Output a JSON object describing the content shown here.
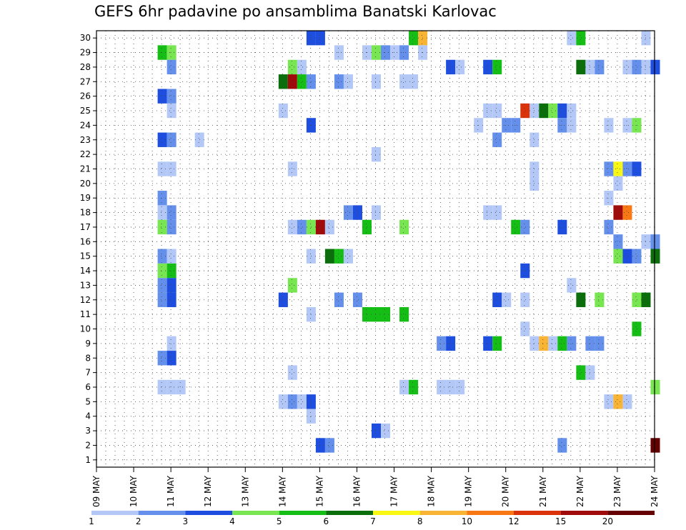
{
  "chart_data": {
    "type": "heatmap",
    "title": "GEFS 6hr padavine po ansamblima Banatski Karlovac",
    "x_tick_labels": [
      "09 MAY",
      "10 MAY",
      "11 MAY",
      "12 MAY",
      "13 MAY",
      "14 MAY",
      "15 MAY",
      "16 MAY",
      "17 MAY",
      "18 MAY",
      "19 MAY",
      "20 MAY",
      "21 MAY",
      "22 MAY",
      "23 MAY",
      "24 MAY"
    ],
    "y_tick_labels": [
      "1",
      "2",
      "3",
      "4",
      "5",
      "6",
      "7",
      "8",
      "9",
      "10",
      "11",
      "12",
      "13",
      "14",
      "15",
      "16",
      "17",
      "18",
      "19",
      "20",
      "21",
      "22",
      "23",
      "24",
      "25",
      "26",
      "27",
      "28",
      "29",
      "30"
    ],
    "x_range": [
      "09 MAY 00",
      "24 MAY 00"
    ],
    "y_range": [
      1,
      30
    ],
    "grid": true,
    "colorbar": {
      "labels": [
        "1",
        "2",
        "3",
        "4",
        "5",
        "6",
        "7",
        "8",
        "10",
        "12",
        "15",
        "20"
      ],
      "colors": [
        "#b4c8f8",
        "#6490ec",
        "#1e4ee0",
        "#78e650",
        "#14be14",
        "#0a6e0a",
        "#f8f814",
        "#f8b432",
        "#f87814",
        "#dc320a",
        "#a00a0a",
        "#640000"
      ]
    },
    "cells": [
      {
        "member": 30,
        "cells": [
          [
            23,
            "c3"
          ],
          [
            24,
            "c3"
          ],
          [
            34,
            "c5"
          ],
          [
            35,
            "c8"
          ],
          [
            51,
            "c1"
          ],
          [
            52,
            "c5"
          ],
          [
            59,
            "c1"
          ]
        ]
      },
      {
        "member": 29,
        "cells": [
          [
            7,
            "c5"
          ],
          [
            8,
            "c4"
          ],
          [
            26,
            "c1"
          ],
          [
            29,
            "c1"
          ],
          [
            30,
            "c4"
          ],
          [
            31,
            "c2"
          ],
          [
            32,
            "c1"
          ],
          [
            33,
            "c2"
          ],
          [
            35,
            "c1"
          ]
        ]
      },
      {
        "member": 28,
        "cells": [
          [
            8,
            "c2"
          ],
          [
            21,
            "c4"
          ],
          [
            22,
            "c1"
          ],
          [
            38,
            "c3"
          ],
          [
            39,
            "c1"
          ],
          [
            42,
            "c3"
          ],
          [
            43,
            "c5"
          ],
          [
            52,
            "c6"
          ],
          [
            53,
            "c1"
          ],
          [
            54,
            "c2"
          ],
          [
            57,
            "c1"
          ],
          [
            58,
            "c2"
          ],
          [
            59,
            "c1"
          ],
          [
            60,
            "c3"
          ]
        ]
      },
      {
        "member": 27,
        "cells": [
          [
            20,
            "c6"
          ],
          [
            21,
            "c11"
          ],
          [
            22,
            "c5"
          ],
          [
            23,
            "c2"
          ],
          [
            26,
            "c2"
          ],
          [
            27,
            "c1"
          ],
          [
            30,
            "c1"
          ],
          [
            33,
            "c1"
          ],
          [
            34,
            "c1"
          ]
        ]
      },
      {
        "member": 26,
        "cells": [
          [
            7,
            "c3"
          ],
          [
            8,
            "c2"
          ]
        ]
      },
      {
        "member": 25,
        "cells": [
          [
            8,
            "c1"
          ],
          [
            20,
            "c1"
          ],
          [
            42,
            "c1"
          ],
          [
            43,
            "c1"
          ],
          [
            46,
            "c10"
          ],
          [
            47,
            "c1"
          ],
          [
            48,
            "c6"
          ],
          [
            49,
            "c4"
          ],
          [
            50,
            "c3"
          ],
          [
            51,
            "c1"
          ]
        ]
      },
      {
        "member": 24,
        "cells": [
          [
            23,
            "c3"
          ],
          [
            41,
            "c1"
          ],
          [
            44,
            "c2"
          ],
          [
            45,
            "c2"
          ],
          [
            50,
            "c2"
          ],
          [
            51,
            "c1"
          ],
          [
            55,
            "c1"
          ],
          [
            57,
            "c1"
          ],
          [
            58,
            "c4"
          ]
        ]
      },
      {
        "member": 23,
        "cells": [
          [
            7,
            "c3"
          ],
          [
            8,
            "c2"
          ],
          [
            11,
            "c1"
          ],
          [
            43,
            "c2"
          ],
          [
            47,
            "c1"
          ]
        ]
      },
      {
        "member": 22,
        "cells": [
          [
            30,
            "c1"
          ]
        ]
      },
      {
        "member": 21,
        "cells": [
          [
            7,
            "c1"
          ],
          [
            8,
            "c1"
          ],
          [
            21,
            "c1"
          ],
          [
            47,
            "c1"
          ],
          [
            55,
            "c2"
          ],
          [
            56,
            "c7"
          ],
          [
            57,
            "c2"
          ],
          [
            58,
            "c3"
          ]
        ]
      },
      {
        "member": 20,
        "cells": [
          [
            47,
            "c1"
          ],
          [
            56,
            "c1"
          ]
        ]
      },
      {
        "member": 19,
        "cells": [
          [
            7,
            "c2"
          ],
          [
            55,
            "c1"
          ]
        ]
      },
      {
        "member": 18,
        "cells": [
          [
            7,
            "c1"
          ],
          [
            8,
            "c2"
          ],
          [
            27,
            "c2"
          ],
          [
            28,
            "c3"
          ],
          [
            30,
            "c1"
          ],
          [
            42,
            "c1"
          ],
          [
            43,
            "c1"
          ],
          [
            56,
            "c11"
          ],
          [
            57,
            "c9"
          ]
        ]
      },
      {
        "member": 17,
        "cells": [
          [
            7,
            "c4"
          ],
          [
            8,
            "c2"
          ],
          [
            21,
            "c1"
          ],
          [
            22,
            "c2"
          ],
          [
            23,
            "c4"
          ],
          [
            24,
            "c11"
          ],
          [
            25,
            "c1"
          ],
          [
            29,
            "c5"
          ],
          [
            33,
            "c4"
          ],
          [
            45,
            "c5"
          ],
          [
            46,
            "c2"
          ],
          [
            50,
            "c3"
          ],
          [
            55,
            "c2"
          ]
        ]
      },
      {
        "member": 16,
        "cells": [
          [
            56,
            "c2"
          ],
          [
            59,
            "c1"
          ],
          [
            60,
            "c2"
          ]
        ]
      },
      {
        "member": 15,
        "cells": [
          [
            7,
            "c2"
          ],
          [
            8,
            "c1"
          ],
          [
            23,
            "c1"
          ],
          [
            25,
            "c6"
          ],
          [
            26,
            "c5"
          ],
          [
            27,
            "c1"
          ],
          [
            56,
            "c4"
          ],
          [
            57,
            "c3"
          ],
          [
            58,
            "c2"
          ],
          [
            60,
            "c6"
          ]
        ]
      },
      {
        "member": 14,
        "cells": [
          [
            7,
            "c4"
          ],
          [
            8,
            "c5"
          ],
          [
            46,
            "c3"
          ]
        ]
      },
      {
        "member": 13,
        "cells": [
          [
            7,
            "c2"
          ],
          [
            8,
            "c3"
          ],
          [
            21,
            "c4"
          ],
          [
            51,
            "c1"
          ]
        ]
      },
      {
        "member": 12,
        "cells": [
          [
            7,
            "c2"
          ],
          [
            8,
            "c3"
          ],
          [
            20,
            "c3"
          ],
          [
            26,
            "c2"
          ],
          [
            28,
            "c2"
          ],
          [
            43,
            "c3"
          ],
          [
            44,
            "c1"
          ],
          [
            46,
            "c1"
          ],
          [
            52,
            "c6"
          ],
          [
            54,
            "c4"
          ],
          [
            58,
            "c4"
          ],
          [
            59,
            "c6"
          ]
        ]
      },
      {
        "member": 11,
        "cells": [
          [
            23,
            "c1"
          ],
          [
            29,
            "c5"
          ],
          [
            30,
            "c5"
          ],
          [
            31,
            "c5"
          ],
          [
            33,
            "c5"
          ]
        ]
      },
      {
        "member": 10,
        "cells": [
          [
            46,
            "c1"
          ],
          [
            58,
            "c5"
          ]
        ]
      },
      {
        "member": 9,
        "cells": [
          [
            8,
            "c1"
          ],
          [
            37,
            "c2"
          ],
          [
            38,
            "c3"
          ],
          [
            42,
            "c3"
          ],
          [
            43,
            "c5"
          ],
          [
            47,
            "c1"
          ],
          [
            48,
            "c8"
          ],
          [
            49,
            "c1"
          ],
          [
            50,
            "c5"
          ],
          [
            51,
            "c2"
          ],
          [
            53,
            "c2"
          ],
          [
            54,
            "c2"
          ]
        ]
      },
      {
        "member": 8,
        "cells": [
          [
            7,
            "c2"
          ],
          [
            8,
            "c3"
          ]
        ]
      },
      {
        "member": 7,
        "cells": [
          [
            21,
            "c1"
          ],
          [
            52,
            "c5"
          ],
          [
            53,
            "c1"
          ]
        ]
      },
      {
        "member": 6,
        "cells": [
          [
            7,
            "c1"
          ],
          [
            8,
            "c1"
          ],
          [
            9,
            "c1"
          ],
          [
            33,
            "c1"
          ],
          [
            34,
            "c5"
          ],
          [
            37,
            "c1"
          ],
          [
            38,
            "c1"
          ],
          [
            39,
            "c1"
          ],
          [
            60,
            "c4"
          ]
        ]
      },
      {
        "member": 5,
        "cells": [
          [
            20,
            "c1"
          ],
          [
            21,
            "c2"
          ],
          [
            22,
            "c1"
          ],
          [
            23,
            "c3"
          ],
          [
            55,
            "c1"
          ],
          [
            56,
            "c8"
          ],
          [
            57,
            "c1"
          ]
        ]
      },
      {
        "member": 4,
        "cells": [
          [
            23,
            "c1"
          ]
        ]
      },
      {
        "member": 3,
        "cells": [
          [
            30,
            "c3"
          ],
          [
            31,
            "c1"
          ]
        ]
      },
      {
        "member": 2,
        "cells": [
          [
            24,
            "c3"
          ],
          [
            25,
            "c2"
          ],
          [
            50,
            "c2"
          ],
          [
            60,
            "c12"
          ]
        ]
      },
      {
        "member": 1,
        "cells": [
          []
        ]
      }
    ]
  }
}
